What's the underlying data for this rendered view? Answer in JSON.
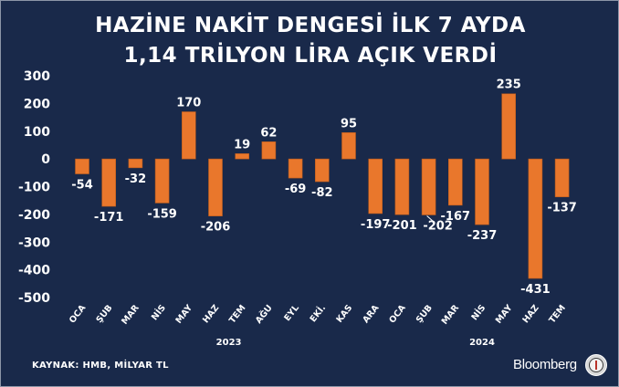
{
  "title_line1": "HAZİNE NAKİT DENGESİ İLK 7 AYDA",
  "title_line2": "1,14 TRİLYON LİRA AÇIK VERDİ",
  "source": "KAYNAK: HMB, MİLYAR TL",
  "brand": "Bloomberg",
  "bar_color": "#e9772c",
  "chart_data": {
    "type": "bar",
    "categories": [
      "OCA",
      "ŞUB",
      "MAR",
      "NİS",
      "MAY",
      "HAZ",
      "TEM",
      "AĞU",
      "EYL",
      "EKİ.",
      "KAS",
      "ARA",
      "OCA",
      "ŞUB",
      "MAR",
      "NİS",
      "MAY",
      "HAZ",
      "TEM"
    ],
    "values": [
      -54,
      -171,
      -32,
      -159,
      170,
      -206,
      19,
      62,
      -69,
      -82,
      95,
      -197,
      -201,
      -202,
      -167,
      -237,
      235,
      -431,
      -137
    ],
    "data_labels": [
      "-54",
      "-171",
      "-32",
      "-159",
      "170",
      "-206",
      "19",
      "62",
      "-69",
      "-82",
      "95",
      "-197",
      "-201",
      "-202",
      "-167",
      "-237",
      "235",
      "-431",
      "-137"
    ],
    "ylim": [
      -500,
      300
    ],
    "yticks": [
      300,
      200,
      100,
      0,
      -100,
      -200,
      -300,
      -400,
      -500
    ],
    "ytick_labels": [
      "300",
      "200",
      "100",
      "0",
      "-100",
      "-200",
      "-300",
      "-400",
      "-500"
    ],
    "year_groups": [
      {
        "label": "2023",
        "start": 0,
        "end": 11
      },
      {
        "label": "2024",
        "start": 12,
        "end": 18
      }
    ],
    "grid": false,
    "legend": "none"
  }
}
